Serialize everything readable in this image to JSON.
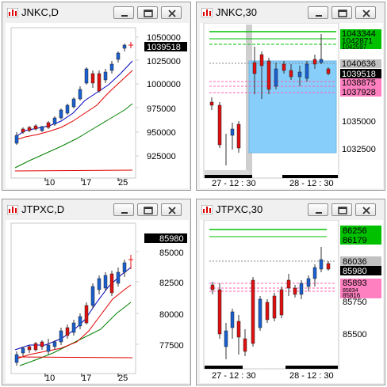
{
  "windows": [
    {
      "title": "JNKC,D",
      "type": "daily",
      "price_labels": [
        "1050000",
        "1025000",
        "1000000",
        "975000",
        "950000",
        "925000"
      ],
      "current_price": "1039518",
      "date_labels": [
        "10",
        "17",
        "25"
      ]
    },
    {
      "title": "JNKC,30",
      "type": "intraday",
      "price_labels": [
        "1035000",
        "1032500"
      ],
      "tags": [
        {
          "text": "1043344",
          "color": "#00c000",
          "text_color": "#000000"
        },
        {
          "text": "1042871",
          "color": "#00c000",
          "text_color": "#000000"
        },
        {
          "text": "1042597",
          "color": "#00c000",
          "text_color": "#000000"
        },
        {
          "text": "1040636",
          "color": "#c0c0c0",
          "text_color": "#000000"
        },
        {
          "text": "1039518",
          "color": "#000000",
          "text_color": "#ffffff"
        },
        {
          "text": "1038875",
          "color": "#ff80c0",
          "text_color": "#000000"
        },
        {
          "text": "1037928",
          "color": "#ff80c0",
          "text_color": "#000000"
        }
      ],
      "date_labels": [
        "27 - 12 : 30",
        "28 - 12 : 30"
      ]
    },
    {
      "title": "JTPXC,D",
      "type": "daily",
      "price_labels": [
        "85000",
        "82500",
        "80000",
        "77500"
      ],
      "current_price": "85980",
      "date_labels": [
        "10",
        "17",
        "25"
      ]
    },
    {
      "title": "JTPXC,30",
      "type": "intraday",
      "price_labels": [
        "85750",
        "85500"
      ],
      "tags": [
        {
          "text": "86256",
          "color": "#00c000",
          "text_color": "#000000"
        },
        {
          "text": "86179",
          "color": "#00c000",
          "text_color": "#000000"
        },
        {
          "text": "86036",
          "color": "#c0c0c0",
          "text_color": "#000000"
        },
        {
          "text": "85980",
          "color": "#000000",
          "text_color": "#ffffff"
        },
        {
          "text": "85893",
          "color": "#ff80c0",
          "text_color": "#000000"
        },
        {
          "text": "85834",
          "color": "#ff80c0",
          "text_color": "#000000"
        },
        {
          "text": "85816",
          "color": "#ff80c0",
          "text_color": "#000000"
        }
      ],
      "date_labels": [
        "27 - 12 : 30",
        "28 - 12 : 30"
      ]
    }
  ],
  "window_buttons": {
    "minimize": "minimize-icon",
    "restore": "restore-icon",
    "close": "close-icon"
  },
  "colors": {
    "bull_candle": "#1a5fd0",
    "bear_candle": "#e01010",
    "ma_fast": "#0000c0",
    "ma_mid": "#e00000",
    "ma_slow": "#008000",
    "resistance": "#00c000",
    "support": "#ff60b0",
    "zone_fill": "#87cefa"
  }
}
